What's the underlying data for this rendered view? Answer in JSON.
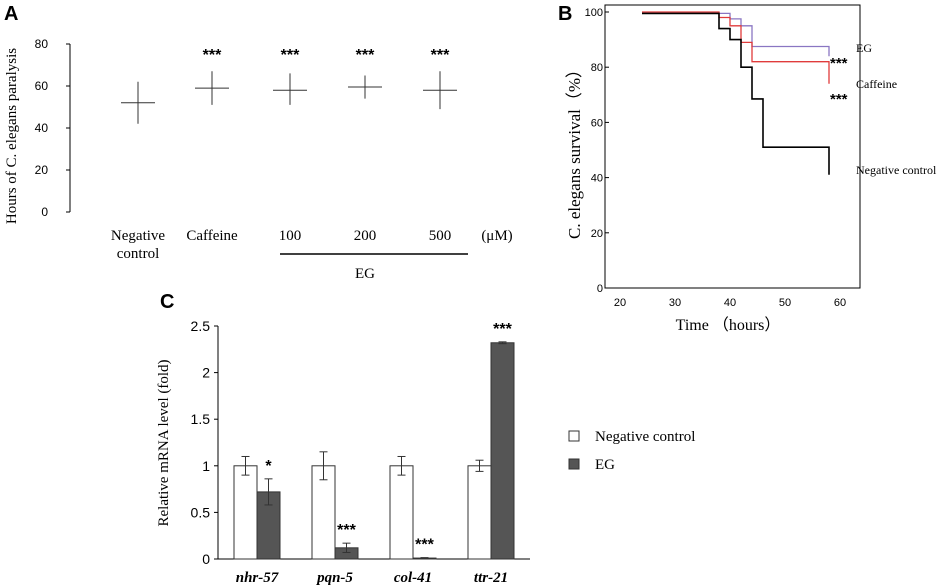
{
  "chart_data": [
    {
      "panel": "A",
      "type": "scatter",
      "title": "",
      "ylabel": "Hours of C. elegans paralysis",
      "ylim": [
        0,
        80
      ],
      "yticks": [
        "0",
        "20",
        "40",
        "60",
        "80"
      ],
      "categories": [
        {
          "label": "Negative control",
          "label_lines": [
            "Negative",
            "control"
          ],
          "mean": 52,
          "low": 42,
          "high": 62,
          "sig": ""
        },
        {
          "label": "Caffeine",
          "label_lines": [
            "Caffeine"
          ],
          "mean": 59,
          "low": 51,
          "high": 67,
          "sig": "***"
        },
        {
          "label": "100",
          "label_lines": [
            "100"
          ],
          "mean": 58,
          "low": 51,
          "high": 66,
          "sig": "***"
        },
        {
          "label": "200",
          "label_lines": [
            "200"
          ],
          "mean": 59.5,
          "low": 54,
          "high": 65,
          "sig": "***"
        },
        {
          "label": "500",
          "label_lines": [
            "500"
          ],
          "mean": 58,
          "low": 49,
          "high": 67,
          "sig": "***"
        }
      ],
      "unit_label": "(μM)",
      "group_label": "EG"
    },
    {
      "panel": "B",
      "type": "line",
      "title": "",
      "xlabel": "Time （hours）",
      "ylabel": "C. elegans survival（%）",
      "xlim": [
        20,
        60
      ],
      "ylim": [
        0,
        100
      ],
      "xticks": [
        "20",
        "30",
        "40",
        "50",
        "60"
      ],
      "yticks": [
        "0",
        "20",
        "40",
        "60",
        "80",
        "100"
      ],
      "series": [
        {
          "name": "EG",
          "color": "#8a76c2",
          "sig": "***",
          "points": [
            [
              24,
              99.5
            ],
            [
              40,
              99.5
            ],
            [
              40,
              97.5
            ],
            [
              42,
              97.5
            ],
            [
              42,
              95
            ],
            [
              44,
              95
            ],
            [
              44,
              87.5
            ],
            [
              58,
              87.5
            ],
            [
              58,
              84
            ]
          ]
        },
        {
          "name": "Caffeine",
          "color": "#e03b3b",
          "sig": "***",
          "points": [
            [
              24,
              100
            ],
            [
              38,
              100
            ],
            [
              38,
              98
            ],
            [
              40,
              98
            ],
            [
              40,
              95
            ],
            [
              42,
              95
            ],
            [
              42,
              89
            ],
            [
              44,
              89
            ],
            [
              44,
              82
            ],
            [
              58,
              82
            ],
            [
              58,
              74
            ]
          ]
        },
        {
          "name": "Negative control",
          "color": "#000000",
          "sig": "",
          "points": [
            [
              24,
              99.5
            ],
            [
              38,
              99.5
            ],
            [
              38,
              94
            ],
            [
              40,
              94
            ],
            [
              40,
              90
            ],
            [
              42,
              90
            ],
            [
              42,
              80
            ],
            [
              44,
              80
            ],
            [
              44,
              68.5
            ],
            [
              46,
              68.5
            ],
            [
              46,
              51
            ],
            [
              58,
              51
            ],
            [
              58,
              41
            ]
          ]
        }
      ]
    },
    {
      "panel": "C",
      "type": "bar",
      "title": "",
      "ylabel": "Relative mRNA level (fold)",
      "ylim": [
        0,
        2.5
      ],
      "yticks": [
        "0",
        "0.5",
        "1",
        "1.5",
        "2",
        "2.5"
      ],
      "categories": [
        "nhr-57",
        "pqn-5",
        "col-41",
        "ttr-21"
      ],
      "series": [
        {
          "name": "Negative control",
          "color": "#ffffff",
          "values": [
            1.0,
            1.0,
            1.0,
            1.0
          ],
          "errors": [
            0.1,
            0.15,
            0.1,
            0.06
          ],
          "sig": [
            "",
            "",
            "",
            ""
          ]
        },
        {
          "name": "EG",
          "color": "#555555",
          "values": [
            0.72,
            0.12,
            0.01,
            2.32
          ],
          "errors": [
            0.14,
            0.05,
            0.005,
            0.01
          ],
          "sig": [
            "*",
            "***",
            "***",
            "***"
          ]
        }
      ]
    }
  ]
}
